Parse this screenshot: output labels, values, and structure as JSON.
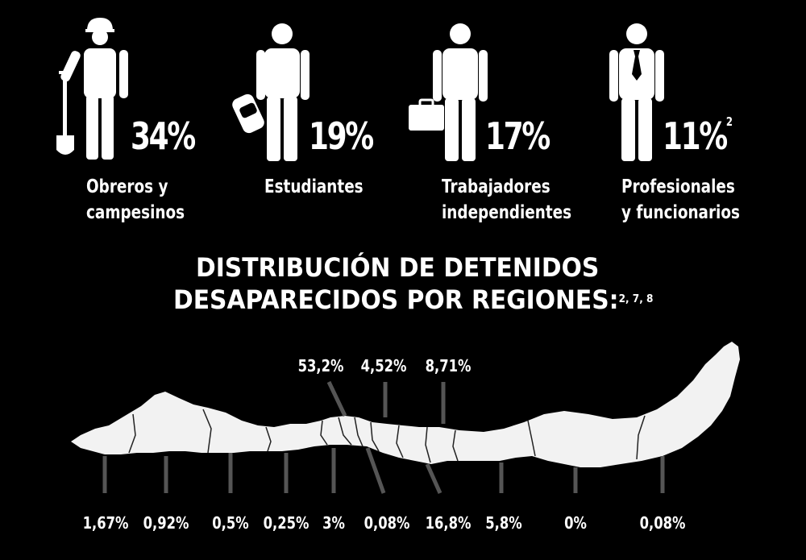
{
  "occupations": [
    {
      "percent": "34%",
      "superscript": "",
      "label_lines": [
        "Obreros y",
        "campesinos"
      ],
      "icon": "worker-with-shovel-icon"
    },
    {
      "percent": "19%",
      "superscript": "",
      "label_lines": [
        "Estudiantes"
      ],
      "icon": "student-with-backpack-icon"
    },
    {
      "percent": "17%",
      "superscript": "",
      "label_lines": [
        "Trabajadores",
        "independientes"
      ],
      "icon": "worker-with-briefcase-icon"
    },
    {
      "percent": "11%",
      "superscript": "2",
      "label_lines": [
        "Profesionales",
        "y funcionarios"
      ],
      "icon": "professional-with-tie-icon"
    }
  ],
  "title": {
    "line1": "DISTRIBUCIÓN DE DETENIDOS",
    "line2": "DESAPARECIDOS POR REGIONES:",
    "superscript": "2, 7, 8"
  },
  "chart_data": [
    {
      "type": "bar",
      "categories": [
        "Obreros y campesinos",
        "Estudiantes",
        "Trabajadores independientes",
        "Profesionales y funcionarios"
      ],
      "values": [
        34,
        19,
        17,
        11
      ],
      "unit": "%"
    },
    {
      "type": "map",
      "title": "DISTRIBUCIÓN DE DETENIDOS DESAPARECIDOS POR REGIONES:",
      "unit": "%",
      "regions_top": [
        {
          "label": "53,2%",
          "value": 53.2
        },
        {
          "label": "4,52%",
          "value": 4.52
        },
        {
          "label": "8,71%",
          "value": 8.71
        }
      ],
      "regions_bottom": [
        {
          "label": "1,67%",
          "value": 1.67
        },
        {
          "label": "0,92%",
          "value": 0.92
        },
        {
          "label": "0,5%",
          "value": 0.5
        },
        {
          "label": "0,25%",
          "value": 0.25
        },
        {
          "label": "3%",
          "value": 3
        },
        {
          "label": "0,08%",
          "value": 0.08
        },
        {
          "label": "16,8%",
          "value": 16.8
        },
        {
          "label": "5,8%",
          "value": 5.8
        },
        {
          "label": "0%",
          "value": 0
        },
        {
          "label": "0,08%",
          "value": 0.08
        }
      ]
    }
  ],
  "colors": {
    "background": "#000000",
    "foreground": "#ffffff",
    "leader_line": "#555555"
  }
}
